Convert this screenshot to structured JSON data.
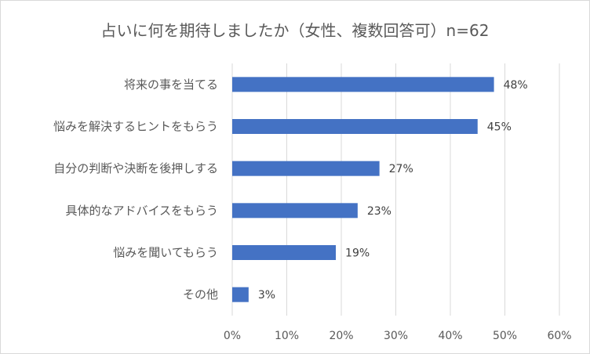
{
  "chart_data": {
    "type": "bar",
    "orientation": "horizontal",
    "title": "占いに何を期待しましたか（女性、複数回答可）n=62",
    "categories": [
      "将来の事を当てる",
      "悩みを解決するヒントをもらう",
      "自分の判断や決断を後押しする",
      "具体的なアドバイスをもらう",
      "悩みを聞いてもらう",
      "その他"
    ],
    "values": [
      48,
      45,
      27,
      23,
      19,
      3
    ],
    "data_labels": [
      "48%",
      "45%",
      "27%",
      "23%",
      "19%",
      "3%"
    ],
    "xlim": [
      0,
      60
    ],
    "x_ticks": [
      "0%",
      "10%",
      "20%",
      "30%",
      "40%",
      "50%",
      "60%"
    ],
    "grid": "vertical",
    "legend": "none",
    "bar_color": "#4472c4"
  }
}
